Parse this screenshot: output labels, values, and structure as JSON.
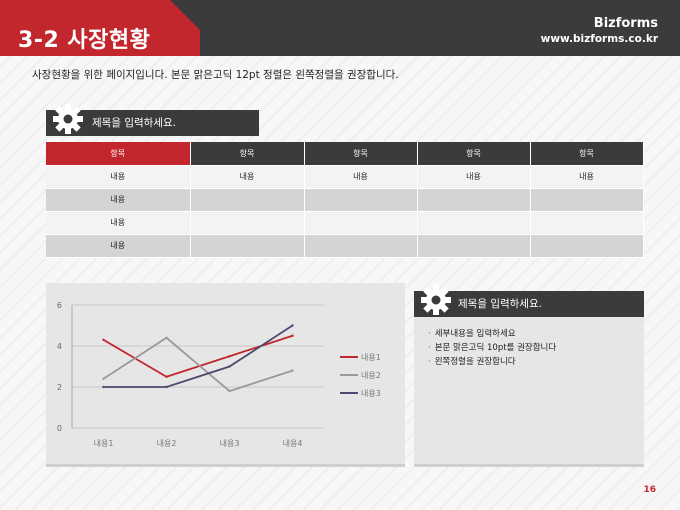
{
  "header": {
    "title": "3-2 사장현황",
    "brand_name": "Bizforms",
    "brand_url": "www.bizforms.co.kr"
  },
  "intro": "사장현황을 위한 페이지입니다. 본문 맑은고딕 12pt 정렬은 왼쪽정렬을 권장합니다.",
  "section1": {
    "title": "제목을 입력하세요."
  },
  "table": {
    "headers": [
      "항목",
      "항목",
      "항목",
      "항목",
      "항목"
    ],
    "rows": [
      [
        "내용",
        "내용",
        "내용",
        "내용",
        "내용"
      ],
      [
        "내용",
        "",
        "",
        "",
        ""
      ],
      [
        "내용",
        "",
        "",
        "",
        ""
      ],
      [
        "내용",
        "",
        "",
        "",
        ""
      ]
    ]
  },
  "section2": {
    "title": "제목을 입력하세요.",
    "bullets": [
      "세부내용을 입력하세요",
      "본문 맑은고딕 10pt를 권장합니다",
      "왼쪽정렬을 권장합니다"
    ]
  },
  "chart_data": {
    "type": "line",
    "categories": [
      "내용1",
      "내용2",
      "내용3",
      "내용4"
    ],
    "series": [
      {
        "name": "내용1",
        "values": [
          4.3,
          2.5,
          3.5,
          4.5
        ],
        "color": "#c1272d"
      },
      {
        "name": "내용2",
        "values": [
          2.4,
          4.4,
          1.8,
          2.8
        ],
        "color": "#999999"
      },
      {
        "name": "내용3",
        "values": [
          2.0,
          2.0,
          3.0,
          5.0
        ],
        "color": "#4a4a6e"
      }
    ],
    "ylim": [
      0,
      6
    ],
    "yticks": [
      "0",
      "2",
      "4",
      "6"
    ],
    "grid": true,
    "legend": "right"
  },
  "page_number": "16"
}
